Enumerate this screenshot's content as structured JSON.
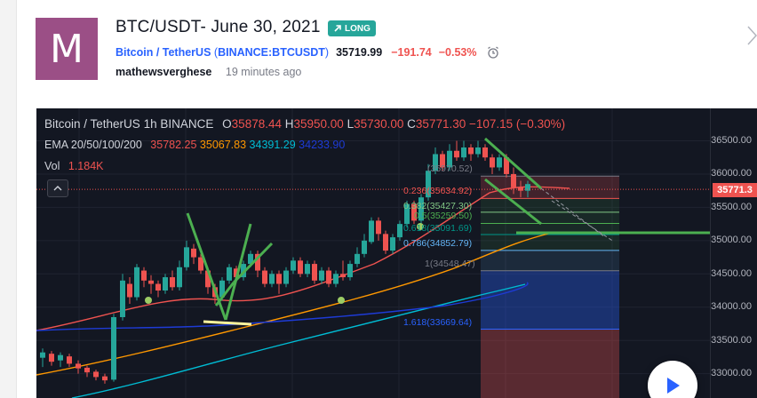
{
  "header": {
    "avatar_letter": "M",
    "title": "BTC/USDT- June 30, 2021",
    "badge": "LONG",
    "badge_icon": "trend-up-arrow-icon",
    "symbol_name": "Bitcoin / TetherUS",
    "symbol_code": "BINANCE:BTCUSDT",
    "price": "35719.99",
    "change": "−191.74",
    "change_pct": "−0.53%",
    "author": "mathewsverghese",
    "time_ago": "19 minutes ago"
  },
  "colors": {
    "accent": "#2962ff",
    "badge": "#26a69a",
    "down": "#ef5350",
    "up": "#26a69a",
    "avatar": "#9b4f86",
    "chart_bg": "#131722"
  },
  "legend": {
    "pair": "Bitcoin / TetherUS",
    "interval": "1h",
    "exchange": "BINANCE",
    "o_label": "O",
    "o_val": "35878.44",
    "h_label": "H",
    "h_val": "35950.00",
    "l_label": "L",
    "l_val": "35730.00",
    "c_label": "C",
    "c_val": "35771.30",
    "change": "−107.15 (−0.30%)",
    "ema_label": "EMA 20/50/100/200",
    "ema": [
      {
        "value": "35782.25",
        "color": "#ef5350"
      },
      {
        "value": "35067.83",
        "color": "#ff9800"
      },
      {
        "value": "34391.29",
        "color": "#00bcd4"
      },
      {
        "value": "34233.90",
        "color": "#1e3bd6"
      }
    ],
    "vol_label": "Vol",
    "vol_val": "1.184K"
  },
  "price_axis": {
    "ticks": [
      "36500.00",
      "36000.00",
      "35500.00",
      "35000.00",
      "34500.00",
      "34000.00",
      "33500.00",
      "33000.00"
    ],
    "current": "35771.3"
  },
  "fib": [
    {
      "label": "(35970.52)",
      "color": "#787b86"
    },
    {
      "label": "0.236(35634.92)",
      "color": "#ef5350"
    },
    {
      "label": "0.382(35427.30)",
      "color": "#81c784"
    },
    {
      "label": "0.5(35259.50)",
      "color": "#4caf50"
    },
    {
      "label": "0.618(35091.69)",
      "color": "#009688"
    },
    {
      "label": "0.786(34852.79)",
      "color": "#64b5f6"
    },
    {
      "label": "1(34548.47)",
      "color": "#787b86"
    },
    {
      "label": "1.618(33669.64)",
      "color": "#2962ff"
    }
  ]
}
